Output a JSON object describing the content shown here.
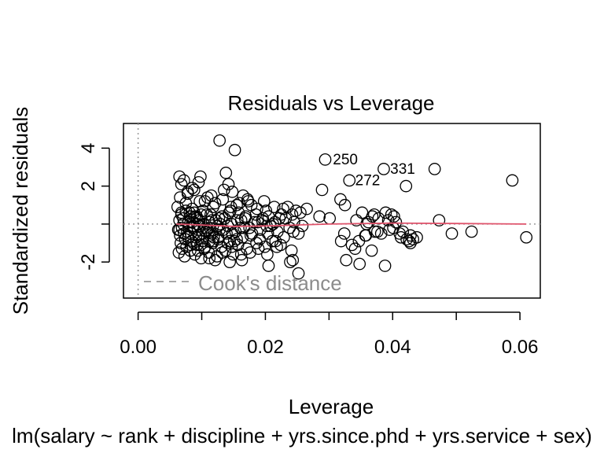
{
  "chart_data": {
    "type": "scatter",
    "title": "Residuals vs Leverage",
    "xlabel": "Leverage",
    "ylabel": "Standardized residuals",
    "subtitle": "lm(salary ~ rank + discipline + yrs.since.phd + yrs.service + sex)",
    "xlim": [
      -0.0023,
      0.0632
    ],
    "ylim": [
      -3.9,
      5.3
    ],
    "x_ticks": [
      0.0,
      0.02,
      0.04,
      0.06
    ],
    "x_tick_labels": [
      "0.00",
      "0.02",
      "0.04",
      "0.06"
    ],
    "y_ticks": [
      -2,
      2,
      4
    ],
    "y_tick_labels": [
      "-2",
      "2",
      "4"
    ],
    "legend": {
      "position": "bottom-left",
      "items": [
        {
          "label": "Cook's distance",
          "style": "dashed",
          "color": "#8c8c8c"
        }
      ]
    },
    "reference_lines": [
      {
        "axis": "y",
        "value": 0,
        "style": "dotted",
        "color": "#999999"
      },
      {
        "axis": "x",
        "value": 0,
        "style": "dotted",
        "color": "#999999"
      }
    ],
    "smooth_line": {
      "color": "#df536b",
      "x": [
        0.006,
        0.01,
        0.015,
        0.02,
        0.025,
        0.03,
        0.04,
        0.05,
        0.061
      ],
      "y": [
        0.0,
        -0.05,
        -0.12,
        -0.1,
        -0.05,
        0.0,
        0.05,
        0.03,
        0.0
      ]
    },
    "labeled_points": [
      {
        "id": "250",
        "x": 0.0295,
        "y": 3.4
      },
      {
        "id": "272",
        "x": 0.033,
        "y": 2.3
      },
      {
        "id": "331",
        "x": 0.0385,
        "y": 2.9
      }
    ],
    "points": {
      "x": [
        0.0128,
        0.0152,
        0.0065,
        0.0072,
        0.0098,
        0.0068,
        0.0085,
        0.0095,
        0.0078,
        0.0138,
        0.0142,
        0.0115,
        0.0165,
        0.0148,
        0.0172,
        0.0135,
        0.0105,
        0.0155,
        0.0178,
        0.0085,
        0.0062,
        0.0075,
        0.0088,
        0.0118,
        0.0145,
        0.0198,
        0.0228,
        0.0225,
        0.0235,
        0.0255,
        0.0242,
        0.0265,
        0.0248,
        0.0285,
        0.0068,
        0.0082,
        0.0092,
        0.0108,
        0.0122,
        0.0132,
        0.0158,
        0.0168,
        0.0185,
        0.0195,
        0.0205,
        0.0215,
        0.0222,
        0.0065,
        0.0071,
        0.0079,
        0.0087,
        0.0096,
        0.0103,
        0.0112,
        0.0125,
        0.0136,
        0.0147,
        0.0162,
        0.0175,
        0.0188,
        0.0202,
        0.0212,
        0.0232,
        0.0245,
        0.0258,
        0.0063,
        0.0069,
        0.0077,
        0.0086,
        0.0094,
        0.0106,
        0.0116,
        0.0128,
        0.0141,
        0.0153,
        0.0166,
        0.0179,
        0.0192,
        0.0208,
        0.0219,
        0.0238,
        0.0252,
        0.0066,
        0.0074,
        0.0083,
        0.0091,
        0.0101,
        0.0113,
        0.0126,
        0.0139,
        0.0151,
        0.0164,
        0.0177,
        0.0191,
        0.0204,
        0.0216,
        0.0229,
        0.0244,
        0.0067,
        0.0076,
        0.0084,
        0.0093,
        0.0104,
        0.0117,
        0.0131,
        0.0144,
        0.0157,
        0.0171,
        0.0186,
        0.0199,
        0.0211,
        0.0224,
        0.0241,
        0.0064,
        0.0073,
        0.0082,
        0.0089,
        0.0099,
        0.0111,
        0.0124,
        0.0137,
        0.0149,
        0.0163,
        0.0176,
        0.0189,
        0.0203,
        0.0218,
        0.0066,
        0.0078,
        0.0088,
        0.0097,
        0.0109,
        0.0121,
        0.0133,
        0.0146,
        0.0159,
        0.0173,
        0.0187,
        0.0201,
        0.0214,
        0.0068,
        0.0081,
        0.0092,
        0.0102,
        0.0114,
        0.0127,
        0.0143,
        0.0156,
        0.0169,
        0.0183,
        0.0196,
        0.0065,
        0.0072,
        0.0086,
        0.0095,
        0.0107,
        0.0119,
        0.0134,
        0.0148,
        0.0161,
        0.0074,
        0.0087,
        0.0098,
        0.0112,
        0.0126,
        0.0141,
        0.0155,
        0.0069,
        0.0083,
        0.0094,
        0.0105,
        0.0118,
        0.0132,
        0.0147,
        0.0071,
        0.0085,
        0.0099,
        0.0113,
        0.0129,
        0.0075,
        0.0089,
        0.0102,
        0.0116,
        0.0079,
        0.0093,
        0.0108,
        0.0082,
        0.0097,
        0.0294,
        0.0332,
        0.0386,
        0.0421,
        0.0466,
        0.0588,
        0.0289,
        0.0325,
        0.0318,
        0.0301,
        0.0352,
        0.0343,
        0.0362,
        0.0371,
        0.0368,
        0.0378,
        0.0389,
        0.0393,
        0.0398,
        0.0402,
        0.0405,
        0.0324,
        0.0357,
        0.0359,
        0.0372,
        0.0395,
        0.0401,
        0.0411,
        0.0416,
        0.0422,
        0.0428,
        0.0432,
        0.0438,
        0.0473,
        0.0493,
        0.0524,
        0.061,
        0.0336,
        0.0341,
        0.0347,
        0.0358,
        0.0367,
        0.0376,
        0.0382,
        0.0327,
        0.0388,
        0.0413,
        0.0426,
        0.0428,
        0.0319,
        0.0348,
        0.0239,
        0.0243,
        0.0252,
        0.0205,
        0.0162,
        0.0144,
        0.0121,
        0.0112
      ],
      "y": [
        4.4,
        3.9,
        2.5,
        2.3,
        2.5,
        2.1,
        1.9,
        2.2,
        1.7,
        2.7,
        2.1,
        1.5,
        1.5,
        1.7,
        1.3,
        1.8,
        1.2,
        1.0,
        1.0,
        0.8,
        0.9,
        1.1,
        0.6,
        0.9,
        0.7,
        1.2,
        0.8,
        0.5,
        0.9,
        0.6,
        0.5,
        0.8,
        0.7,
        0.4,
        0.6,
        0.4,
        0.3,
        0.5,
        0.2,
        0.4,
        0.6,
        0.3,
        0.5,
        0.2,
        0.4,
        0.1,
        0.3,
        0.2,
        0.0,
        0.1,
        -0.1,
        0.2,
        0.0,
        0.1,
        -0.1,
        0.3,
        0.0,
        0.2,
        -0.2,
        0.1,
        -0.1,
        0.0,
        0.3,
        0.1,
        -0.1,
        -0.3,
        -0.2,
        -0.4,
        -0.1,
        -0.3,
        -0.2,
        -0.5,
        -0.3,
        -0.1,
        -0.4,
        -0.2,
        -0.5,
        -0.3,
        -0.1,
        -0.4,
        -0.2,
        -0.5,
        -0.6,
        -0.8,
        -0.5,
        -0.7,
        -0.9,
        -0.6,
        -0.8,
        -0.5,
        -0.9,
        -0.7,
        -0.6,
        -0.8,
        -0.5,
        -0.9,
        -0.7,
        -0.4,
        -1.0,
        -1.2,
        -0.9,
        -1.1,
        -1.3,
        -1.0,
        -1.2,
        -0.9,
        -1.1,
        -1.3,
        -1.0,
        -1.2,
        -0.9,
        -1.1,
        -1.4,
        -1.5,
        -1.7,
        -1.4,
        -1.6,
        -1.8,
        -1.5,
        -1.7,
        -1.4,
        -1.6,
        -1.9,
        -1.5,
        -1.3,
        -1.6,
        -1.2,
        1.4,
        1.6,
        1.8,
        1.2,
        1.4,
        1.1,
        1.3,
        0.9,
        1.1,
        1.2,
        0.8,
        0.7,
        0.9,
        0.5,
        0.6,
        0.4,
        0.7,
        0.5,
        0.3,
        0.6,
        0.2,
        0.4,
        0.1,
        0.3,
        -0.3,
        -0.5,
        -0.2,
        -0.6,
        -0.4,
        -0.7,
        -0.3,
        -0.5,
        -0.2,
        -0.8,
        -1.0,
        -1.1,
        -0.9,
        -0.7,
        -1.0,
        -0.8,
        -1.3,
        -1.1,
        -1.4,
        -1.2,
        -0.9,
        -1.5,
        -1.2,
        0.3,
        0.1,
        0.5,
        -0.2,
        0.0,
        0.7,
        0.4,
        -0.5,
        0.2,
        -0.7,
        0.0,
        -0.3,
        0.4,
        -0.1,
        3.4,
        2.3,
        2.9,
        2.0,
        2.9,
        2.3,
        1.8,
        1.0,
        1.3,
        0.3,
        0.6,
        0.2,
        0.1,
        0.5,
        0.4,
        0.3,
        0.6,
        0.2,
        0.5,
        0.4,
        0.1,
        -0.5,
        -0.6,
        0.0,
        -0.4,
        -0.3,
        -0.2,
        -0.5,
        -0.4,
        -0.8,
        -0.6,
        -0.8,
        -0.7,
        0.2,
        -0.5,
        -0.4,
        -0.7,
        -1.1,
        -1.3,
        -0.9,
        -0.6,
        -1.4,
        -0.4,
        -0.5,
        -1.9,
        -2.2,
        -0.7,
        -0.9,
        -1.0,
        -0.9,
        -2.1,
        -2.0,
        -1.9,
        -2.6,
        -2.2,
        -1.6,
        -2.0,
        -1.9,
        -1.8
      ]
    }
  }
}
